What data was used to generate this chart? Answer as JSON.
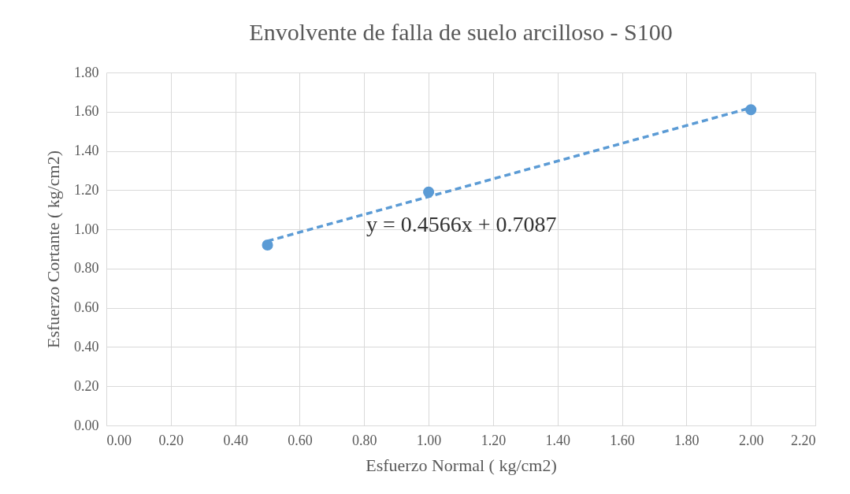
{
  "chart_data": {
    "type": "scatter",
    "title": "Envolvente de falla de suelo arcilloso - S100",
    "xlabel": "Esfuerzo Normal ( kg/cm2)",
    "ylabel": "Esfuerzo Cortante ( kg/cm2)",
    "series": [
      {
        "x": [
          0.5,
          1.0,
          2.0
        ],
        "values": [
          0.92,
          1.19,
          1.61
        ],
        "color": "#5b9bd5",
        "marker": "circle"
      },
      {
        "type": "line",
        "x": [
          0.5,
          2.0
        ],
        "values": [
          0.94,
          1.62
        ],
        "color": "#5b9bd5",
        "line_style": "dashed",
        "marker": "none"
      }
    ],
    "grid": true,
    "annotations": [
      "y = 0.4566x + 0.7087"
    ],
    "xlim": [
      0,
      2.2
    ],
    "ylim": [
      0,
      1.8
    ],
    "xticks": [
      {
        "value": 0,
        "label": "0.00"
      },
      {
        "value": 0.2,
        "label": "0.20"
      },
      {
        "value": 0.4,
        "label": "0.40"
      },
      {
        "value": 0.6,
        "label": "0.60"
      },
      {
        "value": 0.8,
        "label": "0.80"
      },
      {
        "value": 1.0,
        "label": "1.00"
      },
      {
        "value": 1.2,
        "label": "1.20"
      },
      {
        "value": 1.4,
        "label": "1.40"
      },
      {
        "value": 1.6,
        "label": "1.60"
      },
      {
        "value": 1.8,
        "label": "1.80"
      },
      {
        "value": 2.0,
        "label": "2.00"
      },
      {
        "value": 2.2,
        "label": "2.20"
      }
    ],
    "yticks": [
      {
        "value": 0,
        "label": "0.00"
      },
      {
        "value": 0.2,
        "label": "0.20"
      },
      {
        "value": 0.4,
        "label": "0.40"
      },
      {
        "value": 0.6,
        "label": "0.60"
      },
      {
        "value": 0.8,
        "label": "0.80"
      },
      {
        "value": 1.0,
        "label": "1.00"
      },
      {
        "value": 1.2,
        "label": "1.20"
      },
      {
        "value": 1.4,
        "label": "1.40"
      },
      {
        "value": 1.6,
        "label": "1.60"
      },
      {
        "value": 1.8,
        "label": "1.80"
      }
    ]
  }
}
